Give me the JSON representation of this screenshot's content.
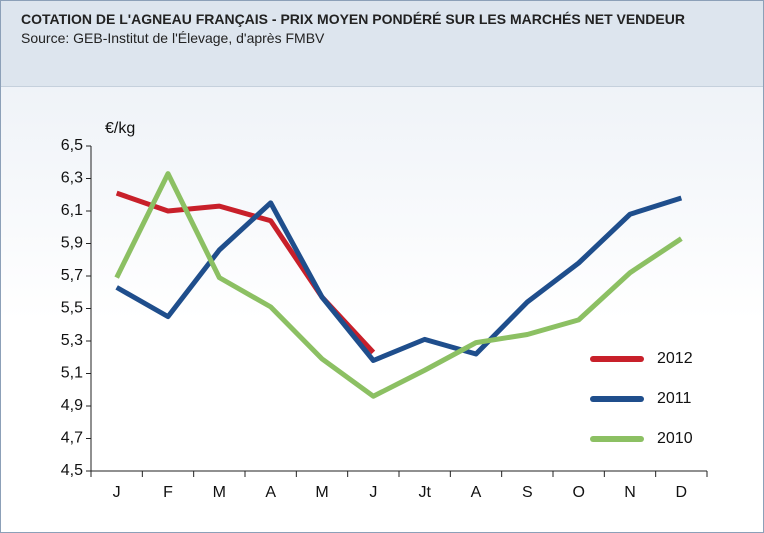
{
  "chart_data": {
    "type": "line",
    "title": "COTATION DE L'AGNEAU FRANÇAIS - PRIX MOYEN PONDÉRÉ SUR LES MARCHÉS NET VENDEUR",
    "subtitle": "Source: GEB-Institut de l'Élevage, d'après  FMBV",
    "y_label": "€/kg",
    "categories": [
      "J",
      "F",
      "M",
      "A",
      "M",
      "J",
      "Jt",
      "A",
      "S",
      "O",
      "N",
      "D"
    ],
    "series": [
      {
        "name": "2012",
        "color": "#c8202a",
        "values": [
          6.21,
          6.1,
          6.13,
          6.04,
          5.57,
          5.23,
          null,
          null,
          null,
          null,
          null,
          null
        ]
      },
      {
        "name": "2011",
        "color": "#1f4e8c",
        "values": [
          5.63,
          5.45,
          5.86,
          6.15,
          5.57,
          5.18,
          5.31,
          5.22,
          5.54,
          5.78,
          6.08,
          6.18
        ]
      },
      {
        "name": "2010",
        "color": "#8cc063",
        "values": [
          5.69,
          6.33,
          5.69,
          5.51,
          5.19,
          4.96,
          5.12,
          5.29,
          5.34,
          5.43,
          5.72,
          5.93
        ]
      }
    ],
    "ylim": [
      4.5,
      6.5
    ],
    "yticks": [
      {
        "value": 4.5,
        "label": "4,5"
      },
      {
        "value": 4.7,
        "label": "4,7"
      },
      {
        "value": 4.9,
        "label": "4,9"
      },
      {
        "value": 5.1,
        "label": "5,1"
      },
      {
        "value": 5.3,
        "label": "5,3"
      },
      {
        "value": 5.5,
        "label": "5,5"
      },
      {
        "value": 5.7,
        "label": "5,7"
      },
      {
        "value": 5.9,
        "label": "5,9"
      },
      {
        "value": 6.1,
        "label": "6,1"
      },
      {
        "value": 6.3,
        "label": "6,3"
      },
      {
        "value": 6.5,
        "label": "6,5"
      }
    ],
    "grid": false,
    "legend": "right"
  }
}
